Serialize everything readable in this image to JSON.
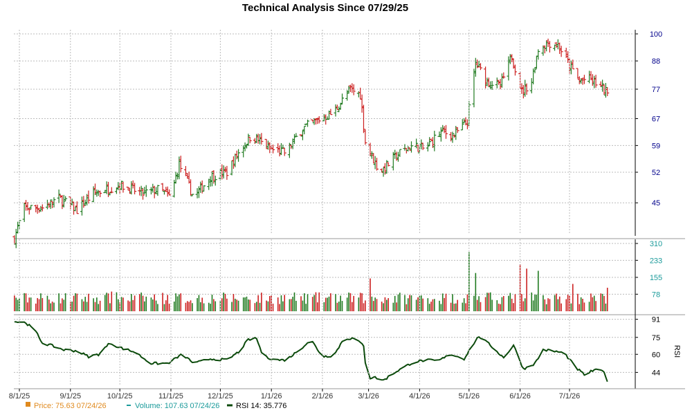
{
  "colors": {
    "up": "#1f7a1f",
    "down": "#cc1f1f",
    "price_axis": "#00008b",
    "volume_axis": "#1a9a9a",
    "rsi_axis": "#000000",
    "rsi_line": "#0b4a0b",
    "grid": "#bbbbbb",
    "legend_price": "#e08a1e",
    "legend_volume": "#1a9a9a",
    "legend_rsi": "#0b4a0b"
  },
  "chart_data": {
    "type": "ohlc-volume-rsi",
    "title": "Technical Analysis Since 07/29/25",
    "x_ticks": [
      "8/1/25",
      "9/1/25",
      "10/1/25",
      "11/1/25",
      "12/1/25",
      "1/1/26",
      "2/1/26",
      "3/1/26",
      "4/1/26",
      "5/1/26",
      "6/1/26",
      "7/1/26"
    ],
    "price": {
      "ticks": [
        45,
        52,
        59,
        67,
        77,
        88,
        100
      ],
      "ylim": [
        39,
        100
      ],
      "log_scale": true,
      "anchors": [
        [
          "2025-07-29",
          38
        ],
        [
          "2025-08-04",
          44
        ],
        [
          "2025-08-15",
          44
        ],
        [
          "2025-08-25",
          46
        ],
        [
          "2025-09-05",
          43.5
        ],
        [
          "2025-09-15",
          47
        ],
        [
          "2025-10-01",
          49
        ],
        [
          "2025-10-15",
          47
        ],
        [
          "2025-10-25",
          48
        ],
        [
          "2025-11-01",
          46
        ],
        [
          "2025-11-06",
          54
        ],
        [
          "2025-11-15",
          46
        ],
        [
          "2025-11-25",
          51
        ],
        [
          "2025-12-05",
          52
        ],
        [
          "2025-12-12",
          57
        ],
        [
          "2025-12-20",
          62
        ],
        [
          "2025-12-31",
          58
        ],
        [
          "2026-01-10",
          57
        ],
        [
          "2026-01-20",
          64
        ],
        [
          "2026-01-31",
          67
        ],
        [
          "2026-02-08",
          69
        ],
        [
          "2026-02-18",
          77
        ],
        [
          "2026-02-24",
          75
        ],
        [
          "2026-02-27",
          60
        ],
        [
          "2026-03-03",
          56
        ],
        [
          "2026-03-08",
          52
        ],
        [
          "2026-03-20",
          57
        ],
        [
          "2026-03-28",
          59
        ],
        [
          "2026-04-04",
          58
        ],
        [
          "2026-04-14",
          63
        ],
        [
          "2026-04-22",
          62
        ],
        [
          "2026-04-30",
          66
        ],
        [
          "2026-05-05",
          87
        ],
        [
          "2026-05-12",
          80
        ],
        [
          "2026-05-20",
          78
        ],
        [
          "2026-05-27",
          90
        ],
        [
          "2026-06-02",
          76
        ],
        [
          "2026-06-08",
          80
        ],
        [
          "2026-06-12",
          93
        ],
        [
          "2026-06-18",
          96
        ],
        [
          "2026-06-24",
          95
        ],
        [
          "2026-07-01",
          86
        ],
        [
          "2026-07-07",
          80
        ],
        [
          "2026-07-12",
          81
        ],
        [
          "2026-07-18",
          79
        ],
        [
          "2026-07-24",
          75.6
        ]
      ]
    },
    "volume": {
      "ticks": [
        78,
        155,
        233,
        310
      ],
      "ylim": [
        0,
        310
      ],
      "spikes": [
        [
          "2025-09-26",
          90
        ],
        [
          "2025-11-01",
          205
        ],
        [
          "2026-02-28",
          310
        ],
        [
          "2026-03-02",
          150
        ],
        [
          "2026-05-01",
          270
        ],
        [
          "2026-05-05",
          175
        ],
        [
          "2026-06-01",
          215
        ],
        [
          "2026-06-05",
          195
        ],
        [
          "2026-06-12",
          185
        ],
        [
          "2026-07-03",
          125
        ],
        [
          "2026-07-24",
          107.6
        ]
      ]
    },
    "rsi": {
      "ticks": [
        44,
        60,
        75,
        91
      ],
      "ylim": [
        32,
        92
      ],
      "label": "RSI",
      "anchors": [
        [
          "2025-07-29",
          89
        ],
        [
          "2025-08-05",
          88
        ],
        [
          "2025-08-11",
          80
        ],
        [
          "2025-08-15",
          70
        ],
        [
          "2025-08-20",
          68
        ],
        [
          "2025-08-28",
          64
        ],
        [
          "2025-09-05",
          63
        ],
        [
          "2025-09-12",
          58
        ],
        [
          "2025-09-18",
          60
        ],
        [
          "2025-09-25",
          70
        ],
        [
          "2025-10-01",
          66
        ],
        [
          "2025-10-10",
          62
        ],
        [
          "2025-10-20",
          52
        ],
        [
          "2025-10-30",
          52
        ],
        [
          "2025-11-08",
          60
        ],
        [
          "2025-11-15",
          52
        ],
        [
          "2025-11-25",
          56
        ],
        [
          "2025-12-05",
          55
        ],
        [
          "2025-12-12",
          62
        ],
        [
          "2025-12-18",
          73
        ],
        [
          "2025-12-23",
          74
        ],
        [
          "2025-12-27",
          58
        ],
        [
          "2026-01-05",
          55
        ],
        [
          "2026-01-10",
          55
        ],
        [
          "2026-01-18",
          64
        ],
        [
          "2026-01-25",
          73
        ],
        [
          "2026-02-01",
          58
        ],
        [
          "2026-02-08",
          59
        ],
        [
          "2026-02-14",
          74
        ],
        [
          "2026-02-20",
          74
        ],
        [
          "2026-02-26",
          68
        ],
        [
          "2026-02-28",
          38
        ],
        [
          "2026-03-04",
          40
        ],
        [
          "2026-03-10",
          37
        ],
        [
          "2026-03-18",
          45
        ],
        [
          "2026-03-28",
          53
        ],
        [
          "2026-04-05",
          55
        ],
        [
          "2026-04-12",
          54
        ],
        [
          "2026-04-20",
          60
        ],
        [
          "2026-04-28",
          56
        ],
        [
          "2026-05-03",
          68
        ],
        [
          "2026-05-07",
          76
        ],
        [
          "2026-05-14",
          68
        ],
        [
          "2026-05-22",
          57
        ],
        [
          "2026-05-28",
          68
        ],
        [
          "2026-06-03",
          47
        ],
        [
          "2026-06-10",
          52
        ],
        [
          "2026-06-15",
          64
        ],
        [
          "2026-06-21",
          63
        ],
        [
          "2026-06-28",
          61
        ],
        [
          "2026-07-05",
          48
        ],
        [
          "2026-07-10",
          42
        ],
        [
          "2026-07-16",
          46
        ],
        [
          "2026-07-22",
          45
        ],
        [
          "2026-07-24",
          35.8
        ]
      ]
    },
    "legend": {
      "price": "Price: 75.63  07/24/26",
      "volume": "Volume: 107.63  07/24/26",
      "rsi": "RSI 14: 35.776"
    }
  }
}
